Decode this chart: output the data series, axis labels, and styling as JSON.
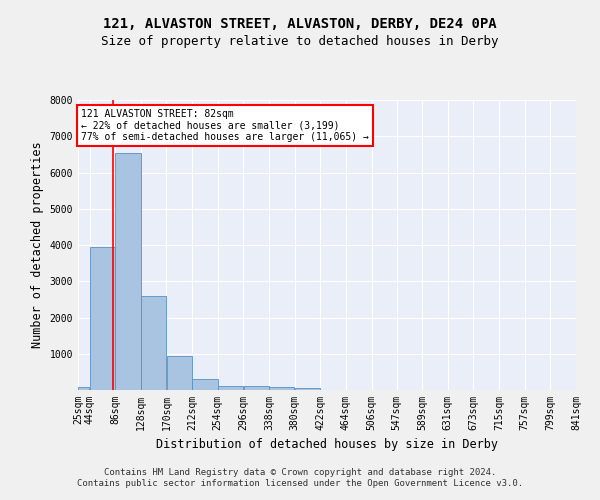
{
  "title": "121, ALVASTON STREET, ALVASTON, DERBY, DE24 0PA",
  "subtitle": "Size of property relative to detached houses in Derby",
  "xlabel": "Distribution of detached houses by size in Derby",
  "ylabel": "Number of detached properties",
  "bar_values": [
    75,
    3950,
    6550,
    2600,
    950,
    300,
    120,
    110,
    80,
    60,
    0,
    0,
    0,
    0,
    0,
    0,
    0,
    0,
    0,
    0
  ],
  "bin_edges": [
    25,
    44,
    86,
    128,
    170,
    212,
    254,
    296,
    338,
    380,
    422,
    464,
    506,
    547,
    589,
    631,
    673,
    715,
    757,
    799,
    841
  ],
  "tick_labels": [
    "25sqm",
    "44sqm",
    "86sqm",
    "128sqm",
    "170sqm",
    "212sqm",
    "254sqm",
    "296sqm",
    "338sqm",
    "380sqm",
    "422sqm",
    "464sqm",
    "506sqm",
    "547sqm",
    "589sqm",
    "631sqm",
    "673sqm",
    "715sqm",
    "757sqm",
    "799sqm",
    "841sqm"
  ],
  "bar_color": "#a8c4e0",
  "bar_edge_color": "#5a90c0",
  "background_color": "#eaeef8",
  "grid_color": "#ffffff",
  "red_line_x": 82,
  "annotation_title": "121 ALVASTON STREET: 82sqm",
  "annotation_line1": "← 22% of detached houses are smaller (3,199)",
  "annotation_line2": "77% of semi-detached houses are larger (11,065) →",
  "annotation_box_color": "#ff0000",
  "ylim": [
    0,
    8000
  ],
  "yticks": [
    0,
    1000,
    2000,
    3000,
    4000,
    5000,
    6000,
    7000,
    8000
  ],
  "footer_line1": "Contains HM Land Registry data © Crown copyright and database right 2024.",
  "footer_line2": "Contains public sector information licensed under the Open Government Licence v3.0.",
  "title_fontsize": 10,
  "subtitle_fontsize": 9,
  "axis_label_fontsize": 8.5,
  "tick_fontsize": 7,
  "footer_fontsize": 6.5
}
